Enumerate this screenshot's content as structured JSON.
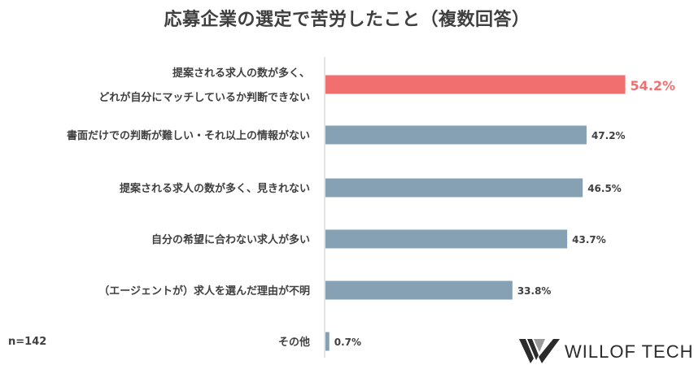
{
  "title": "応募企業の選定で苦労したこと（複数回答）",
  "sample_note": "n=142",
  "brand": {
    "name": "WILLOF TECH",
    "logo_icon": "willof-w-logo-icon"
  },
  "colors": {
    "highlight": "#f26f70",
    "bar": "#86a1b4",
    "axis": "#c8c8c8",
    "text": "#404040"
  },
  "chart_data": {
    "type": "bar",
    "orientation": "horizontal",
    "unit": "%",
    "xlim": [
      0,
      60
    ],
    "grid": false,
    "legend": "none",
    "categories": [
      [
        "提案される求人の数が多く、",
        "どれが自分にマッチしているか判断できない"
      ],
      [
        "書面だけでの判断が難しい・それ以上の情報がない"
      ],
      [
        "提案される求人の数が多く、見きれない"
      ],
      [
        "自分の希望に合わない求人が多い"
      ],
      [
        "（エージェントが）求人を選んだ理由が不明"
      ],
      [
        "その他"
      ]
    ],
    "values": [
      54.2,
      47.2,
      46.5,
      43.7,
      33.8,
      0.7
    ],
    "value_labels": [
      "54.2%",
      "47.2%",
      "46.5%",
      "43.7%",
      "33.8%",
      "0.7%"
    ],
    "highlight_index": 0
  }
}
